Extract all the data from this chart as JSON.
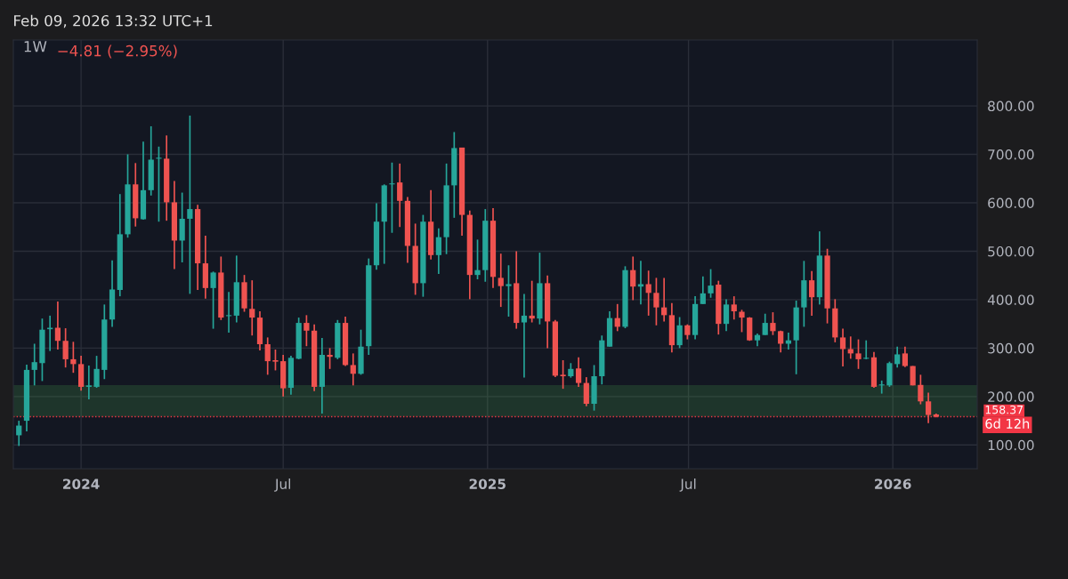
{
  "chart_data": {
    "type": "candlestick",
    "title": "1W",
    "annotations": [
      "Feb 09, 2026 13:32 UTC+1",
      "−4.81 (−2.95%)",
      "6d 12h"
    ],
    "x": [
      "2023-11-06",
      "2023-11-13",
      "2023-11-20",
      "2023-11-27",
      "2023-12-04",
      "2023-12-11",
      "2023-12-18",
      "2023-12-25",
      "2024-01-01",
      "2024-01-08",
      "2024-01-15",
      "2024-01-22",
      "2024-01-29",
      "2024-02-05",
      "2024-02-12",
      "2024-02-19",
      "2024-02-26",
      "2024-03-04",
      "2024-03-11",
      "2024-03-18",
      "2024-03-25",
      "2024-04-01",
      "2024-04-08",
      "2024-04-15",
      "2024-04-22",
      "2024-04-29",
      "2024-05-06",
      "2024-05-13",
      "2024-05-20",
      "2024-05-27",
      "2024-06-03",
      "2024-06-10",
      "2024-06-17",
      "2024-06-24",
      "2024-07-01",
      "2024-07-08",
      "2024-07-15",
      "2024-07-22",
      "2024-07-29",
      "2024-08-05",
      "2024-08-12",
      "2024-08-19",
      "2024-08-26",
      "2024-09-02",
      "2024-09-09",
      "2024-09-16",
      "2024-09-23",
      "2024-09-30",
      "2024-10-07",
      "2024-10-14",
      "2024-10-21",
      "2024-10-28",
      "2024-11-04",
      "2024-11-11",
      "2024-11-18",
      "2024-11-25",
      "2024-12-02",
      "2024-12-09",
      "2024-12-16",
      "2024-12-23",
      "2024-12-30",
      "2025-01-06",
      "2025-01-13",
      "2025-01-20",
      "2025-01-27",
      "2025-02-03",
      "2025-02-10",
      "2025-02-17",
      "2025-02-24",
      "2025-03-03",
      "2025-03-10",
      "2025-03-17",
      "2025-03-24",
      "2025-03-31",
      "2025-04-07",
      "2025-04-14",
      "2025-04-21",
      "2025-04-28",
      "2025-05-05",
      "2025-05-12",
      "2025-05-19",
      "2025-05-26",
      "2025-06-02",
      "2025-06-09",
      "2025-06-16",
      "2025-06-23",
      "2025-06-30",
      "2025-07-07",
      "2025-07-14",
      "2025-07-21",
      "2025-07-28",
      "2025-08-04",
      "2025-08-11",
      "2025-08-18",
      "2025-08-25",
      "2025-09-01",
      "2025-09-08",
      "2025-09-15",
      "2025-09-22",
      "2025-09-29",
      "2025-10-06",
      "2025-10-13",
      "2025-10-20",
      "2025-10-27",
      "2025-11-03",
      "2025-11-10",
      "2025-11-17",
      "2025-11-24",
      "2025-12-01",
      "2025-12-08",
      "2025-12-15",
      "2025-12-22",
      "2025-12-29",
      "2026-01-05",
      "2026-01-12",
      "2026-01-19",
      "2026-01-26",
      "2026-02-02",
      "2026-02-09"
    ],
    "ohlc": [
      [
        120,
        150,
        98,
        140
      ],
      [
        150,
        266,
        128,
        255
      ],
      [
        255,
        309,
        223,
        271
      ],
      [
        269,
        361,
        232,
        338
      ],
      [
        339,
        367,
        294,
        342
      ],
      [
        342,
        396,
        297,
        315
      ],
      [
        315,
        341,
        260,
        277
      ],
      [
        277,
        313,
        249,
        267
      ],
      [
        267,
        284,
        212,
        220
      ],
      [
        220,
        264,
        194,
        223
      ],
      [
        220,
        284,
        218,
        257
      ],
      [
        255,
        390,
        236,
        359
      ],
      [
        359,
        481,
        344,
        421
      ],
      [
        420,
        618,
        407,
        535
      ],
      [
        535,
        700,
        528,
        638
      ],
      [
        638,
        682,
        551,
        568
      ],
      [
        566,
        726,
        565,
        626
      ],
      [
        626,
        758,
        615,
        689
      ],
      [
        691,
        716,
        561,
        693
      ],
      [
        691,
        739,
        563,
        601
      ],
      [
        601,
        645,
        463,
        522
      ],
      [
        522,
        621,
        477,
        567
      ],
      [
        567,
        780,
        412,
        587
      ],
      [
        587,
        596,
        420,
        475
      ],
      [
        475,
        532,
        402,
        424
      ],
      [
        424,
        458,
        340,
        456
      ],
      [
        456,
        489,
        358,
        363
      ],
      [
        366,
        416,
        332,
        368
      ],
      [
        367,
        491,
        353,
        436
      ],
      [
        436,
        451,
        375,
        382
      ],
      [
        381,
        440,
        326,
        363
      ],
      [
        363,
        376,
        295,
        308
      ],
      [
        308,
        322,
        245,
        273
      ],
      [
        275,
        297,
        254,
        272
      ],
      [
        273,
        286,
        200,
        217
      ],
      [
        218,
        284,
        204,
        280
      ],
      [
        278,
        363,
        277,
        352
      ],
      [
        352,
        368,
        304,
        336
      ],
      [
        336,
        349,
        211,
        220
      ],
      [
        220,
        321,
        165,
        286
      ],
      [
        286,
        300,
        257,
        282
      ],
      [
        280,
        358,
        277,
        352
      ],
      [
        352,
        365,
        263,
        265
      ],
      [
        265,
        289,
        223,
        247
      ],
      [
        247,
        338,
        245,
        303
      ],
      [
        304,
        485,
        286,
        471
      ],
      [
        471,
        599,
        462,
        561
      ],
      [
        561,
        638,
        474,
        636
      ],
      [
        638,
        683,
        538,
        640
      ],
      [
        642,
        681,
        550,
        604
      ],
      [
        604,
        612,
        476,
        511
      ],
      [
        511,
        557,
        410,
        434
      ],
      [
        434,
        575,
        406,
        561
      ],
      [
        561,
        626,
        483,
        492
      ],
      [
        492,
        547,
        453,
        529
      ],
      [
        529,
        681,
        494,
        636
      ],
      [
        636,
        746,
        569,
        713
      ],
      [
        714,
        714,
        532,
        575
      ],
      [
        575,
        584,
        401,
        451
      ],
      [
        451,
        524,
        442,
        461
      ],
      [
        461,
        587,
        437,
        563
      ],
      [
        563,
        589,
        424,
        447
      ],
      [
        445,
        495,
        385,
        428
      ],
      [
        428,
        471,
        365,
        432
      ],
      [
        434,
        500,
        340,
        352
      ],
      [
        353,
        412,
        239,
        367
      ],
      [
        367,
        439,
        353,
        361
      ],
      [
        361,
        497,
        349,
        434
      ],
      [
        434,
        450,
        300,
        355
      ],
      [
        355,
        358,
        240,
        243
      ],
      [
        245,
        275,
        216,
        242
      ],
      [
        242,
        269,
        239,
        257
      ],
      [
        258,
        281,
        220,
        228
      ],
      [
        228,
        240,
        180,
        185
      ],
      [
        185,
        265,
        171,
        242
      ],
      [
        242,
        326,
        225,
        316
      ],
      [
        303,
        376,
        303,
        362
      ],
      [
        362,
        391,
        335,
        344
      ],
      [
        344,
        469,
        341,
        461
      ],
      [
        461,
        489,
        399,
        427
      ],
      [
        427,
        480,
        390,
        432
      ],
      [
        432,
        460,
        367,
        414
      ],
      [
        414,
        445,
        347,
        384
      ],
      [
        384,
        445,
        355,
        368
      ],
      [
        368,
        393,
        291,
        306
      ],
      [
        306,
        364,
        300,
        347
      ],
      [
        347,
        349,
        318,
        327
      ],
      [
        327,
        407,
        318,
        391
      ],
      [
        391,
        448,
        391,
        413
      ],
      [
        413,
        463,
        404,
        429
      ],
      [
        431,
        439,
        328,
        350
      ],
      [
        350,
        401,
        335,
        390
      ],
      [
        390,
        407,
        359,
        376
      ],
      [
        375,
        379,
        333,
        363
      ],
      [
        363,
        364,
        315,
        316
      ],
      [
        316,
        330,
        304,
        327
      ],
      [
        327,
        371,
        327,
        352
      ],
      [
        352,
        374,
        327,
        335
      ],
      [
        335,
        336,
        291,
        309
      ],
      [
        309,
        332,
        297,
        316
      ],
      [
        316,
        398,
        246,
        384
      ],
      [
        384,
        480,
        344,
        440
      ],
      [
        440,
        459,
        367,
        405
      ],
      [
        405,
        541,
        390,
        491
      ],
      [
        491,
        505,
        351,
        382
      ],
      [
        382,
        401,
        312,
        322
      ],
      [
        322,
        340,
        262,
        298
      ],
      [
        298,
        324,
        278,
        289
      ],
      [
        289,
        318,
        257,
        277
      ],
      [
        278,
        316,
        277,
        280
      ],
      [
        281,
        292,
        218,
        220
      ],
      [
        223,
        233,
        206,
        225
      ],
      [
        223,
        272,
        220,
        269
      ],
      [
        267,
        303,
        260,
        287
      ],
      [
        289,
        303,
        261,
        263
      ],
      [
        263,
        263,
        223,
        223
      ],
      [
        224,
        245,
        184,
        190
      ],
      [
        190,
        208,
        145,
        162
      ],
      [
        163,
        165,
        157,
        158.37
      ]
    ],
    "xlim": [
      "2023-11-01",
      "2026-03-18"
    ],
    "xticks": [
      {
        "value": "2024-01-01",
        "label": "2024"
      },
      {
        "value": "2024-07-01",
        "label": "Jul"
      },
      {
        "value": "2025-01-01",
        "label": "2025"
      },
      {
        "value": "2025-07-01",
        "label": "Jul"
      },
      {
        "value": "2026-01-01",
        "label": "2026"
      }
    ],
    "ylim": [
      51,
      936
    ],
    "yticks": [
      {
        "value": 100,
        "label": "100.00"
      },
      {
        "value": 200,
        "label": "200.00"
      },
      {
        "value": 300,
        "label": "300.00"
      },
      {
        "value": 400,
        "label": "400.00"
      },
      {
        "value": 500,
        "label": "500.00"
      },
      {
        "value": 600,
        "label": "600.00"
      },
      {
        "value": 700,
        "label": "700.00"
      },
      {
        "value": 800,
        "label": "800.00"
      }
    ],
    "bands": [
      {
        "axis": "y",
        "from": 160,
        "to": 222,
        "color": "#4caf50"
      }
    ],
    "ref_lines": [
      {
        "axis": "y",
        "value": 158.37,
        "label": "158.37",
        "color": "#f23645",
        "line_style": "dotted"
      }
    ],
    "grid": true
  }
}
